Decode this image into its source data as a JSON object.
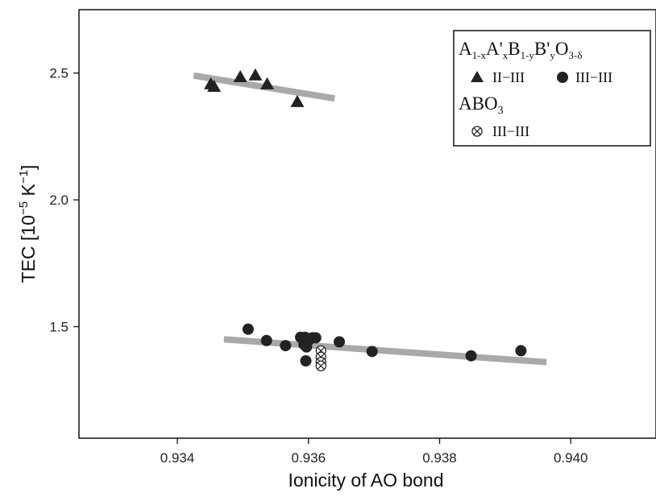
{
  "chart_data": {
    "type": "scatter",
    "xlabel": "Ionicity of AO bond",
    "ylabel": {
      "base": "TEC [10",
      "exp1": "−5",
      "mid": " K",
      "exp2": "−1",
      "end": "]"
    },
    "xlim": [
      0.9325,
      0.9413
    ],
    "ylim": [
      1.06,
      2.75
    ],
    "x_ticks": [
      {
        "value": 0.934,
        "label": "0.934"
      },
      {
        "value": 0.936,
        "label": "0.936"
      },
      {
        "value": 0.938,
        "label": "0.938"
      },
      {
        "value": 0.94,
        "label": "0.940"
      }
    ],
    "y_ticks": [
      {
        "value": 1.5,
        "label": "1.5"
      },
      {
        "value": 2.0,
        "label": "2.0"
      },
      {
        "value": 2.5,
        "label": "2.5"
      }
    ],
    "grid": false,
    "legend": {
      "position": "top-right",
      "group1_title": {
        "A": "A",
        "s1": "1-x",
        "A2": "A'",
        "s2": "x",
        "B": "B",
        "s3": "1-y",
        "B2": "B'",
        "s4": "y",
        "O": "O",
        "s5": "3-δ"
      },
      "group1_entries": [
        {
          "marker": "triangle",
          "label": "II−III"
        },
        {
          "marker": "circle",
          "label": "III−III"
        }
      ],
      "group2_title": {
        "base": "ABO",
        "sub": "3"
      },
      "group2_entries": [
        {
          "marker": "otimes",
          "label": "III−III"
        }
      ]
    },
    "series": [
      {
        "name": "II−III",
        "marker": "triangle",
        "points": [
          [
            0.93451,
            2.455
          ],
          [
            0.93456,
            2.445
          ],
          [
            0.93496,
            2.483
          ],
          [
            0.93519,
            2.49
          ],
          [
            0.93537,
            2.455
          ],
          [
            0.93583,
            2.385
          ]
        ]
      },
      {
        "name": "III−III",
        "marker": "circle",
        "points": [
          [
            0.93508,
            1.49
          ],
          [
            0.93536,
            1.445
          ],
          [
            0.93565,
            1.425
          ],
          [
            0.93588,
            1.458
          ],
          [
            0.93595,
            1.458
          ],
          [
            0.93606,
            1.456
          ],
          [
            0.93611,
            1.456
          ],
          [
            0.93593,
            1.43
          ],
          [
            0.93597,
            1.42
          ],
          [
            0.936,
            1.445
          ],
          [
            0.93596,
            1.365
          ],
          [
            0.93647,
            1.44
          ],
          [
            0.93697,
            1.402
          ],
          [
            0.93848,
            1.385
          ],
          [
            0.93924,
            1.405
          ]
        ]
      },
      {
        "name": "ABO3 III−III",
        "marker": "otimes",
        "points": [
          [
            0.93619,
            1.405
          ],
          [
            0.93619,
            1.38
          ],
          [
            0.93619,
            1.36
          ],
          [
            0.93619,
            1.345
          ]
        ]
      }
    ],
    "trend_lines": [
      {
        "from": [
          0.93425,
          2.49
        ],
        "to": [
          0.9364,
          2.4
        ]
      },
      {
        "from": [
          0.93471,
          1.45
        ],
        "to": [
          0.93963,
          1.36
        ]
      }
    ]
  }
}
